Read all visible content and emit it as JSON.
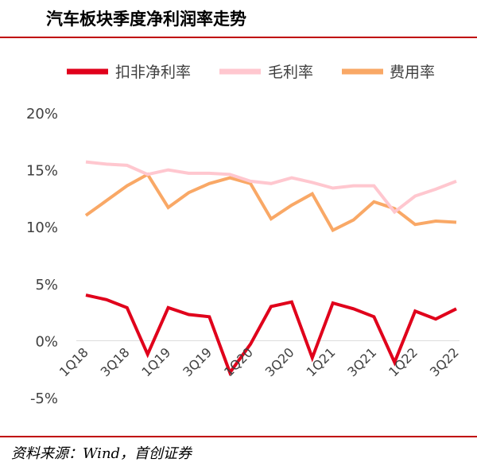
{
  "title": "汽车板块季度净利润率走势",
  "source": "资料来源：Wind，首创证券",
  "chart_data": {
    "type": "line",
    "title": "汽车板块季度净利润率走势",
    "xlabel": "",
    "ylabel": "",
    "ylim": [
      -5,
      20
    ],
    "yticks": [
      "20%",
      "15%",
      "10%",
      "5%",
      "0%",
      "-5%"
    ],
    "ytick_values": [
      20,
      15,
      10,
      5,
      0,
      -5
    ],
    "grid": false,
    "legend": "top",
    "x": [
      "1Q18",
      "2Q18",
      "3Q18",
      "4Q18",
      "1Q19",
      "2Q19",
      "3Q19",
      "4Q19",
      "1Q20",
      "2Q20",
      "3Q20",
      "4Q20",
      "1Q21",
      "2Q21",
      "3Q21",
      "4Q21",
      "1Q22",
      "2Q22",
      "3Q22"
    ],
    "xtick_labels": [
      "1Q18",
      "",
      "3Q18",
      "",
      "1Q19",
      "",
      "3Q19",
      "",
      "1Q20",
      "",
      "3Q20",
      "",
      "1Q21",
      "",
      "3Q21",
      "",
      "1Q22",
      "",
      "3Q22"
    ],
    "series": [
      {
        "name": "扣非净利率",
        "color": "#e0001b",
        "width": 4,
        "values": [
          4.0,
          3.6,
          2.9,
          -1.2,
          2.9,
          2.3,
          2.1,
          -2.8,
          -0.3,
          3.0,
          3.4,
          -1.5,
          3.3,
          2.8,
          2.1,
          -1.9,
          2.6,
          1.9,
          2.8
        ]
      },
      {
        "name": "毛利率",
        "color": "#ffc7cf",
        "width": 4,
        "values": [
          15.7,
          15.5,
          15.4,
          14.6,
          15.0,
          14.7,
          14.7,
          14.6,
          14.0,
          13.8,
          14.3,
          13.9,
          13.4,
          13.6,
          13.6,
          11.3,
          12.7,
          13.3,
          14.0
        ]
      },
      {
        "name": "费用率",
        "color": "#f9a866",
        "width": 4,
        "values": [
          11.0,
          12.3,
          13.6,
          14.6,
          11.7,
          13.0,
          13.8,
          14.3,
          13.8,
          10.7,
          11.9,
          12.9,
          9.7,
          10.6,
          12.2,
          11.6,
          10.2,
          10.5,
          10.4
        ]
      }
    ]
  }
}
